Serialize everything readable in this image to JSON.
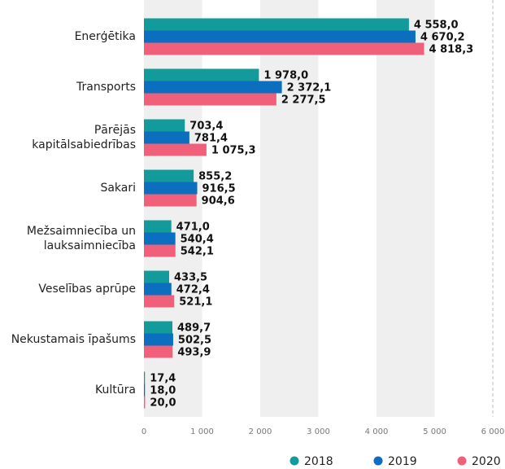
{
  "chart_data": {
    "type": "hbar",
    "categories": [
      "Enerģētika",
      "Transports",
      "Pārējās kapitālsabiedrības",
      "Sakari",
      "Mežsaimniecība un lauksaimniecība",
      "Veselības aprūpe",
      "Nekustamais īpašums",
      "Kultūra"
    ],
    "series": [
      {
        "name": "2018",
        "color": "#139b9b",
        "values": [
          4558.0,
          1978.0,
          703.4,
          855.2,
          471.0,
          433.5,
          489.7,
          17.4
        ],
        "value_labels": [
          "4 558,0",
          "1 978,0",
          "703,4",
          "855,2",
          "471,0",
          "433,5",
          "489,7",
          "17,4"
        ]
      },
      {
        "name": "2019",
        "color": "#0b6ebf",
        "values": [
          4670.2,
          2372.1,
          781.4,
          916.5,
          540.4,
          472.4,
          502.5,
          18.0
        ],
        "value_labels": [
          "4 670,2",
          "2 372,1",
          "781,4",
          "916,5",
          "540,4",
          "472,4",
          "502,5",
          "18,0"
        ]
      },
      {
        "name": "2020",
        "color": "#f0607a",
        "values": [
          4818.3,
          2277.5,
          1075.3,
          904.6,
          542.1,
          521.1,
          493.9,
          20.0
        ],
        "value_labels": [
          "4 818,3",
          "2 277,5",
          "1 075,3",
          "904,6",
          "542,1",
          "521,1",
          "493,9",
          "20,0"
        ]
      }
    ],
    "xlim": [
      0,
      6000
    ],
    "xticks": [
      0,
      {
        "value": 1000,
        "label": "1 000"
      },
      {
        "value": 2000,
        "label": "2 000"
      },
      {
        "value": 3000,
        "label": "3 000"
      },
      {
        "value": 4000,
        "label": "4 000"
      },
      {
        "value": 5000,
        "label": "5 000"
      },
      {
        "value": 6000,
        "label": "6 000"
      }
    ],
    "legend": "bottom-right"
  }
}
